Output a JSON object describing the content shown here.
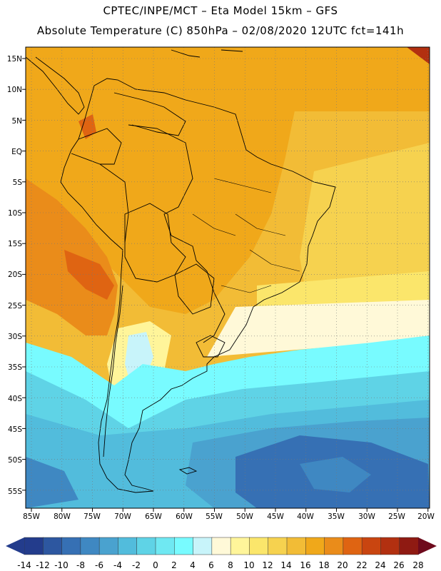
{
  "header": {
    "line1": "CPTEC/INPE/MCT –  Eta Model 15km – GFS",
    "line2": "Absolute Temperature (C) 850hPa – 02/08/2020 12UTC fct=141h"
  },
  "map": {
    "lat_labels": [
      "15N",
      "10N",
      "5N",
      "EQ",
      "5S",
      "10S",
      "15S",
      "20S",
      "25S",
      "30S",
      "35S",
      "40S",
      "45S",
      "50S",
      "55S"
    ],
    "lon_labels": [
      "85W",
      "80W",
      "75W",
      "70W",
      "65W",
      "60W",
      "55W",
      "50W",
      "45W",
      "40W",
      "35W",
      "30W",
      "25W",
      "20W"
    ]
  },
  "colorbar": {
    "labels": [
      "-14",
      "-12",
      "-10",
      "-8",
      "-6",
      "-4",
      "-2",
      "0",
      "2",
      "4",
      "6",
      "8",
      "10",
      "12",
      "14",
      "16",
      "18",
      "20",
      "22",
      "24",
      "26",
      "28"
    ],
    "colors": [
      "#233c8c",
      "#2d57a0",
      "#3670b4",
      "#3f88c2",
      "#4aa2cf",
      "#52bcdc",
      "#5fd3e6",
      "#6fe8f2",
      "#78fbff",
      "#c8f4fa",
      "#fff9d8",
      "#fff59a",
      "#fbe66b",
      "#f6d24f",
      "#f2bc36",
      "#f0a81a",
      "#ea8c1a",
      "#df6412",
      "#c94510",
      "#b23010",
      "#8f1a12",
      "#6e0a1c"
    ]
  }
}
